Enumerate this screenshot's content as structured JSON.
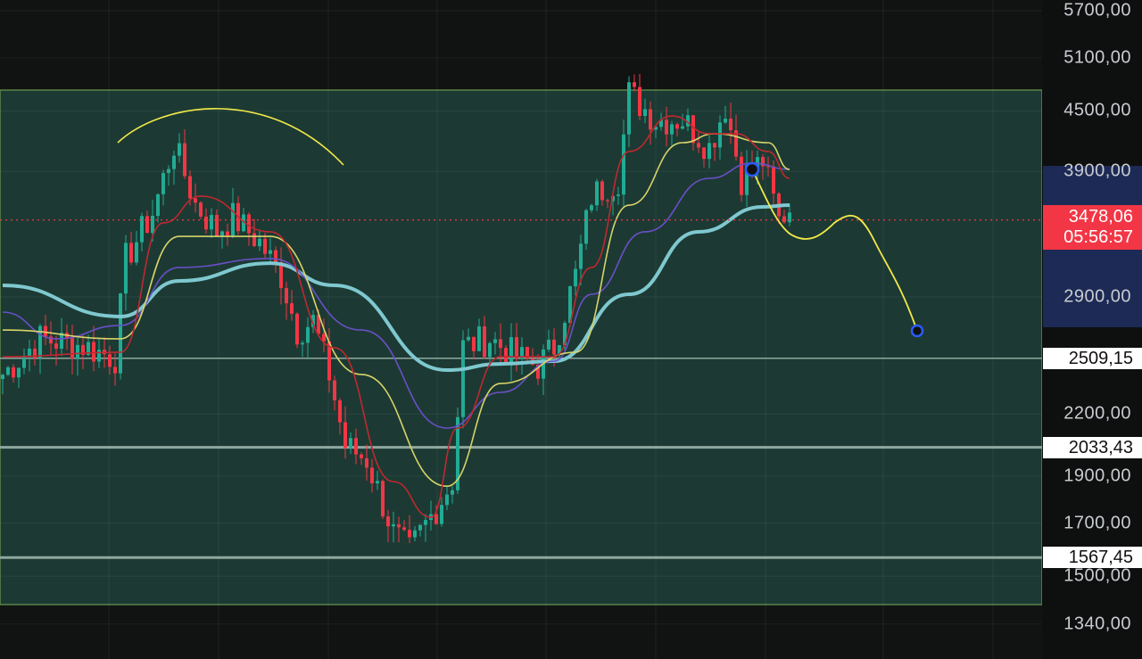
{
  "chart_data": {
    "type": "candlestick",
    "y_scale": "log",
    "ylim": [
      1340,
      5700
    ],
    "grid": true,
    "price_axis_labels": [
      "5700,00",
      "5100,00",
      "4500,00",
      "3900,00",
      "2900,00",
      "2200,00",
      "1900,00",
      "1700,00",
      "1500,00",
      "1340,00"
    ],
    "price_axis_values": [
      5700,
      5100,
      4500,
      3900,
      2900,
      2200,
      1900,
      1700,
      1500,
      1340
    ],
    "last_price": {
      "label": "3478,06",
      "value": 3478.06,
      "countdown": "05:56:57",
      "color": "#f23645"
    },
    "horizontal_levels": [
      {
        "label": "2509,15",
        "value": 2509.15
      },
      {
        "label": "2033,43",
        "value": 2033.43
      },
      {
        "label": "1567,45",
        "value": 1567.45
      }
    ],
    "range_box": {
      "top": 4650,
      "bottom": 1400,
      "fill": "#1c3a33",
      "border": "#6b9a4f"
    },
    "projection_range": {
      "top": 3950,
      "bottom": 2700,
      "color": "#1c2a55"
    },
    "colors": {
      "up": "#22ab94",
      "down": "#f23645",
      "ma_fast": "#c0282f",
      "ma_mid": "#d8d36a",
      "ma_slow": "#6a4fc8",
      "ma_long": "#7fc8d0",
      "drawing": "#f2e84a"
    },
    "price_keypoints": [
      [
        0,
        2415
      ],
      [
        7,
        2628
      ],
      [
        15,
        2584
      ],
      [
        21,
        2512
      ],
      [
        23,
        3175
      ],
      [
        28,
        3535
      ],
      [
        32,
        4157
      ],
      [
        36,
        3610
      ],
      [
        40,
        3390
      ],
      [
        43,
        3500
      ],
      [
        48,
        3300
      ],
      [
        52,
        3050
      ],
      [
        55,
        2680
      ],
      [
        58,
        2740
      ],
      [
        61,
        2415
      ],
      [
        64,
        2040
      ],
      [
        68,
        1975
      ],
      [
        73,
        1660
      ],
      [
        76,
        1590
      ],
      [
        78,
        1660
      ],
      [
        82,
        1800
      ],
      [
        84,
        1880
      ],
      [
        86,
        2580
      ],
      [
        91,
        2630
      ],
      [
        96,
        2515
      ],
      [
        100,
        2465
      ],
      [
        103,
        2580
      ],
      [
        107,
        3050
      ],
      [
        110,
        3680
      ],
      [
        115,
        3840
      ],
      [
        117,
        4690
      ],
      [
        122,
        4410
      ],
      [
        127,
        4410
      ],
      [
        132,
        4130
      ],
      [
        135,
        4560
      ],
      [
        138,
        3840
      ],
      [
        142,
        4000
      ],
      [
        145,
        3470
      ],
      [
        147,
        3580
      ]
    ],
    "moving_averages": [
      {
        "key": "ma_long",
        "points": [
          [
            0,
            2980
          ],
          [
            22,
            2769
          ],
          [
            33,
            3012
          ],
          [
            50,
            3141
          ],
          [
            62,
            2980
          ],
          [
            83,
            2440
          ],
          [
            93,
            2476
          ],
          [
            103,
            2492
          ],
          [
            117,
            2918
          ],
          [
            130,
            3382
          ],
          [
            142,
            3587
          ],
          [
            147,
            3602
          ]
        ]
      },
      {
        "key": "ma_slow",
        "points": [
          [
            0,
            2798
          ],
          [
            10,
            2627
          ],
          [
            22,
            2711
          ],
          [
            33,
            3109
          ],
          [
            50,
            3175
          ],
          [
            67,
            2682
          ],
          [
            83,
            2128
          ],
          [
            93,
            2315
          ],
          [
            103,
            2492
          ],
          [
            110,
            2918
          ],
          [
            120,
            3382
          ],
          [
            132,
            3837
          ],
          [
            140,
            3977
          ],
          [
            147,
            3919
          ]
        ]
      },
      {
        "key": "ma_mid",
        "points": [
          [
            0,
            2682
          ],
          [
            22,
            2627
          ],
          [
            33,
            3346
          ],
          [
            50,
            3346
          ],
          [
            67,
            2415
          ],
          [
            83,
            1855
          ],
          [
            93,
            2364
          ],
          [
            107,
            2545
          ],
          [
            117,
            3602
          ],
          [
            127,
            4174
          ],
          [
            133,
            4263
          ],
          [
            143,
            4174
          ],
          [
            147,
            3919
          ]
        ]
      },
      {
        "key": "ma_fast",
        "points": [
          [
            0,
            2518
          ],
          [
            22,
            2545
          ],
          [
            30,
            3454
          ],
          [
            37,
            3679
          ],
          [
            50,
            3382
          ],
          [
            62,
            2572
          ],
          [
            73,
            1875
          ],
          [
            80,
            1724
          ],
          [
            85,
            2128
          ],
          [
            93,
            2518
          ],
          [
            103,
            2518
          ],
          [
            110,
            3109
          ],
          [
            117,
            4088
          ],
          [
            125,
            4446
          ],
          [
            132,
            4263
          ],
          [
            137,
            4263
          ],
          [
            143,
            4088
          ],
          [
            147,
            3837
          ]
        ]
      }
    ]
  }
}
